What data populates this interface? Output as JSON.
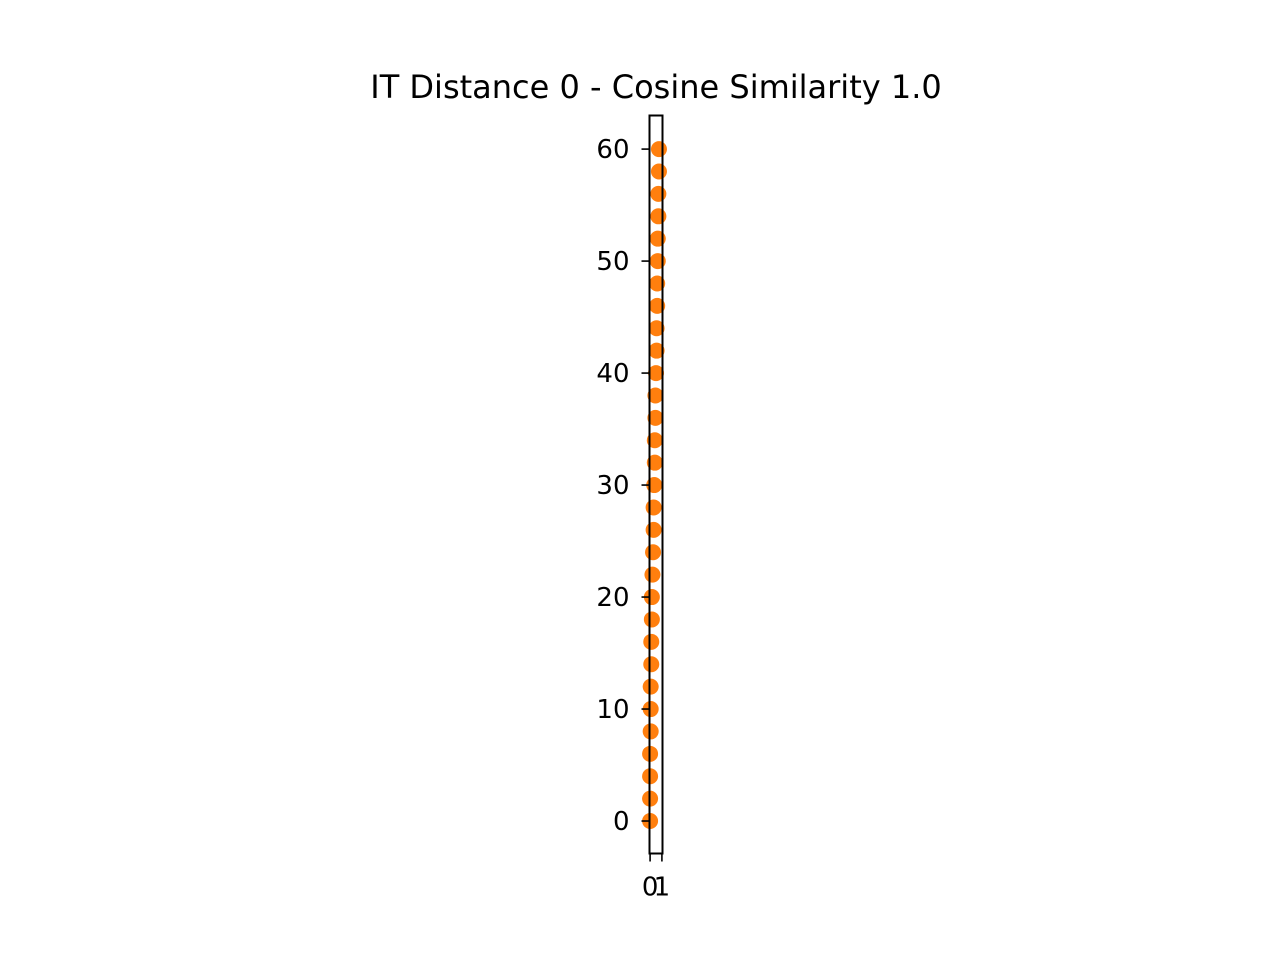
{
  "chart_data": {
    "type": "scatter",
    "title": "IT Distance 0 - Cosine Similarity 1.0",
    "xlabel": "",
    "ylabel": "",
    "xlim": [
      -0.05,
      1.05
    ],
    "ylim": [
      -2.9,
      63.0
    ],
    "x_ticks": [
      0,
      1
    ],
    "x_tick_labels": [
      "0",
      "1"
    ],
    "y_ticks": [
      0,
      10,
      20,
      30,
      40,
      50,
      60
    ],
    "y_tick_labels": [
      "0",
      "10",
      "20",
      "30",
      "40",
      "50",
      "60"
    ],
    "grid": false,
    "legend": "none",
    "series": [
      {
        "color": "#ff7f0e",
        "points": [
          {
            "x": 0.0,
            "y": 0
          },
          {
            "x": 0.0,
            "y": 2
          },
          {
            "x": 0.0,
            "y": 4
          },
          {
            "x": 0.0,
            "y": 6
          },
          {
            "x": 0.05,
            "y": 8
          },
          {
            "x": 0.05,
            "y": 10
          },
          {
            "x": 0.05,
            "y": 12
          },
          {
            "x": 0.1,
            "y": 14
          },
          {
            "x": 0.1,
            "y": 16
          },
          {
            "x": 0.15,
            "y": 18
          },
          {
            "x": 0.15,
            "y": 20
          },
          {
            "x": 0.2,
            "y": 22
          },
          {
            "x": 0.25,
            "y": 24
          },
          {
            "x": 0.3,
            "y": 26
          },
          {
            "x": 0.3,
            "y": 28
          },
          {
            "x": 0.35,
            "y": 30
          },
          {
            "x": 0.4,
            "y": 32
          },
          {
            "x": 0.4,
            "y": 34
          },
          {
            "x": 0.45,
            "y": 36
          },
          {
            "x": 0.45,
            "y": 38
          },
          {
            "x": 0.5,
            "y": 40
          },
          {
            "x": 0.55,
            "y": 42
          },
          {
            "x": 0.55,
            "y": 44
          },
          {
            "x": 0.6,
            "y": 46
          },
          {
            "x": 0.6,
            "y": 48
          },
          {
            "x": 0.65,
            "y": 50
          },
          {
            "x": 0.65,
            "y": 52
          },
          {
            "x": 0.7,
            "y": 54
          },
          {
            "x": 0.7,
            "y": 56
          },
          {
            "x": 0.75,
            "y": 58
          },
          {
            "x": 0.75,
            "y": 60
          }
        ]
      }
    ]
  }
}
